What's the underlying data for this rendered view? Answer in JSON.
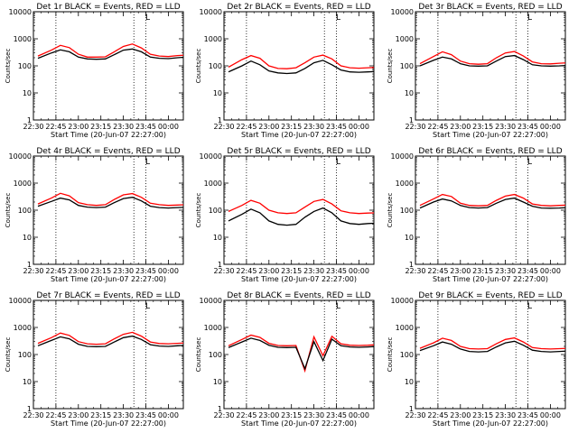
{
  "figure": {
    "y_label": "Counts/sec",
    "x_label": "Start Time (20-Jun-07 22:27:00)",
    "corner_marker": "L"
  },
  "chart_data": [
    {
      "type": "line",
      "title": "Det 1r BLACK = Events, RED = LLD",
      "ylog": true,
      "ylim": [
        1,
        10000
      ],
      "yticks": [
        1,
        10,
        100,
        1000,
        10000
      ],
      "xticks": [
        "22:30",
        "22:45",
        "23:00",
        "23:15",
        "23:30",
        "23:45",
        "00:00"
      ],
      "dotted_x": [
        "22:45",
        "23:37",
        "23:45"
      ],
      "grid": false,
      "x_minutes": [
        3,
        12,
        18,
        24,
        30,
        36,
        42,
        48,
        54,
        60,
        66,
        72,
        78,
        84,
        90,
        96,
        102,
        108,
        114
      ],
      "series": [
        {
          "name": "Events",
          "color": "#000000",
          "values": [
            190,
            300,
            390,
            330,
            210,
            180,
            175,
            180,
            260,
            380,
            420,
            330,
            210,
            190,
            185,
            200,
            210,
            200,
            200
          ]
        },
        {
          "name": "LLD",
          "color": "#ff0000",
          "values": [
            230,
            380,
            570,
            470,
            270,
            210,
            210,
            215,
            330,
            520,
            640,
            460,
            270,
            230,
            220,
            240,
            250,
            245,
            250
          ]
        }
      ]
    },
    {
      "type": "line",
      "title": "Det 2r BLACK = Events, RED = LLD",
      "ylog": true,
      "ylim": [
        1,
        10000
      ],
      "yticks": [
        1,
        10,
        100,
        1000,
        10000
      ],
      "xticks": [
        "22:30",
        "22:45",
        "23:00",
        "23:15",
        "23:30",
        "23:45",
        "00:00"
      ],
      "dotted_x": [
        "22:45",
        "23:37",
        "23:45"
      ],
      "grid": false,
      "x_minutes": [
        3,
        12,
        18,
        24,
        30,
        36,
        42,
        48,
        54,
        60,
        66,
        72,
        78,
        84,
        90,
        96,
        102,
        108,
        114
      ],
      "series": [
        {
          "name": "Events",
          "color": "#000000",
          "values": [
            60,
            100,
            150,
            110,
            65,
            55,
            52,
            55,
            80,
            130,
            160,
            110,
            70,
            60,
            58,
            60,
            62,
            60,
            60
          ]
        },
        {
          "name": "LLD",
          "color": "#ff0000",
          "values": [
            90,
            170,
            240,
            190,
            100,
            80,
            78,
            85,
            130,
            210,
            250,
            180,
            100,
            85,
            82,
            85,
            88,
            85,
            90
          ]
        }
      ]
    },
    {
      "type": "line",
      "title": "Det 3r BLACK = Events, RED = LLD",
      "ylog": true,
      "ylim": [
        1,
        10000
      ],
      "yticks": [
        1,
        10,
        100,
        1000,
        10000
      ],
      "xticks": [
        "22:30",
        "22:45",
        "23:00",
        "23:15",
        "23:30",
        "23:45",
        "00:00"
      ],
      "dotted_x": [
        "22:45",
        "23:37",
        "23:45"
      ],
      "grid": false,
      "x_minutes": [
        3,
        12,
        18,
        24,
        30,
        36,
        42,
        48,
        54,
        60,
        66,
        72,
        78,
        84,
        90,
        96,
        102,
        108,
        114
      ],
      "series": [
        {
          "name": "Events",
          "color": "#000000",
          "values": [
            100,
            160,
            210,
            180,
            120,
            100,
            98,
            100,
            150,
            220,
            240,
            170,
            110,
            100,
            98,
            100,
            105,
            105,
            110
          ]
        },
        {
          "name": "LLD",
          "color": "#ff0000",
          "values": [
            120,
            220,
            330,
            260,
            150,
            120,
            115,
            120,
            200,
            300,
            340,
            230,
            140,
            120,
            118,
            125,
            130,
            130,
            140
          ]
        }
      ]
    },
    {
      "type": "line",
      "title": "Det 4r BLACK = Events, RED = LLD",
      "ylog": true,
      "ylim": [
        1,
        10000
      ],
      "yticks": [
        1,
        10,
        100,
        1000,
        10000
      ],
      "xticks": [
        "22:30",
        "22:45",
        "23:00",
        "23:15",
        "23:30",
        "23:45",
        "00:00"
      ],
      "dotted_x": [
        "22:45",
        "23:37",
        "23:45"
      ],
      "grid": false,
      "x_minutes": [
        3,
        12,
        18,
        24,
        30,
        36,
        42,
        48,
        54,
        60,
        66,
        72,
        78,
        84,
        90,
        96,
        102,
        108,
        114
      ],
      "series": [
        {
          "name": "Events",
          "color": "#000000",
          "values": [
            140,
            210,
            280,
            240,
            150,
            130,
            125,
            130,
            190,
            270,
            300,
            220,
            140,
            125,
            120,
            125,
            128,
            125,
            130
          ]
        },
        {
          "name": "LLD",
          "color": "#ff0000",
          "values": [
            170,
            280,
            420,
            340,
            190,
            160,
            150,
            160,
            250,
            370,
            410,
            300,
            180,
            160,
            150,
            155,
            160,
            155,
            165
          ]
        }
      ]
    },
    {
      "type": "line",
      "title": "Det 5r BLACK = Events, RED = LLD",
      "ylog": true,
      "ylim": [
        1,
        10000
      ],
      "yticks": [
        1,
        10,
        100,
        1000,
        10000
      ],
      "xticks": [
        "22:30",
        "22:45",
        "23:00",
        "23:15",
        "23:30",
        "23:45",
        "00:00"
      ],
      "dotted_x": [
        "22:45",
        "23:37",
        "23:45"
      ],
      "grid": false,
      "x_minutes": [
        3,
        12,
        18,
        24,
        30,
        36,
        42,
        48,
        54,
        60,
        66,
        72,
        78,
        84,
        90,
        96,
        102,
        108,
        114
      ],
      "series": [
        {
          "name": "Events",
          "color": "#000000",
          "values": [
            40,
            70,
            110,
            80,
            40,
            30,
            28,
            30,
            55,
            90,
            120,
            80,
            40,
            32,
            30,
            32,
            33,
            32,
            35
          ]
        },
        {
          "name": "LLD",
          "color": "#ff0000",
          "values": [
            90,
            150,
            230,
            180,
            100,
            80,
            75,
            80,
            130,
            210,
            250,
            170,
            95,
            80,
            75,
            78,
            80,
            80,
            85
          ]
        }
      ]
    },
    {
      "type": "line",
      "title": "Det 6r BLACK = Events, RED = LLD",
      "ylog": true,
      "ylim": [
        1,
        10000
      ],
      "yticks": [
        1,
        10,
        100,
        1000,
        10000
      ],
      "xticks": [
        "22:30",
        "22:45",
        "23:00",
        "23:15",
        "23:30",
        "23:45",
        "00:00"
      ],
      "dotted_x": [
        "22:45",
        "23:37",
        "23:45"
      ],
      "grid": false,
      "x_minutes": [
        3,
        12,
        18,
        24,
        30,
        36,
        42,
        48,
        54,
        60,
        66,
        72,
        78,
        84,
        90,
        96,
        102,
        108,
        114
      ],
      "series": [
        {
          "name": "Events",
          "color": "#000000",
          "values": [
            120,
            200,
            260,
            220,
            150,
            125,
            120,
            125,
            180,
            250,
            280,
            200,
            140,
            120,
            118,
            120,
            125,
            122,
            125
          ]
        },
        {
          "name": "LLD",
          "color": "#ff0000",
          "values": [
            150,
            260,
            380,
            320,
            180,
            150,
            145,
            150,
            230,
            330,
            380,
            280,
            170,
            150,
            145,
            150,
            155,
            150,
            155
          ]
        }
      ]
    },
    {
      "type": "line",
      "title": "Det 7r BLACK = Events, RED = LLD",
      "ylog": true,
      "ylim": [
        1,
        10000
      ],
      "yticks": [
        1,
        10,
        100,
        1000,
        10000
      ],
      "xticks": [
        "22:30",
        "22:45",
        "23:00",
        "23:15",
        "23:30",
        "23:45",
        "00:00"
      ],
      "dotted_x": [
        "22:45",
        "23:37",
        "23:45"
      ],
      "grid": false,
      "x_minutes": [
        3,
        12,
        18,
        24,
        30,
        36,
        42,
        48,
        54,
        60,
        66,
        72,
        78,
        84,
        90,
        96,
        102,
        108,
        114
      ],
      "series": [
        {
          "name": "Events",
          "color": "#000000",
          "values": [
            210,
            330,
            450,
            380,
            240,
            200,
            195,
            200,
            290,
            420,
            480,
            360,
            230,
            205,
            200,
            210,
            220,
            215,
            220
          ]
        },
        {
          "name": "LLD",
          "color": "#ff0000",
          "values": [
            260,
            420,
            620,
            510,
            300,
            250,
            240,
            250,
            380,
            560,
            660,
            480,
            290,
            255,
            250,
            260,
            270,
            265,
            270
          ]
        }
      ]
    },
    {
      "type": "line",
      "title": "Det 8r BLACK = Events, RED = LLD",
      "ylog": true,
      "ylim": [
        1,
        10000
      ],
      "yticks": [
        1,
        10,
        100,
        1000,
        10000
      ],
      "xticks": [
        "22:30",
        "22:45",
        "23:00",
        "23:15",
        "23:30",
        "23:45",
        "00:00"
      ],
      "dotted_x": [
        "22:45",
        "23:37",
        "23:45"
      ],
      "grid": false,
      "x_minutes": [
        3,
        12,
        18,
        24,
        30,
        36,
        42,
        48,
        54,
        60,
        66,
        72,
        78,
        84,
        90,
        96,
        102,
        108,
        114
      ],
      "series": [
        {
          "name": "Events",
          "color": "#000000",
          "values": [
            180,
            290,
            400,
            330,
            220,
            185,
            180,
            185,
            30,
            300,
            60,
            370,
            210,
            190,
            185,
            190,
            200,
            195,
            200
          ]
        },
        {
          "name": "LLD",
          "color": "#ff0000",
          "values": [
            210,
            360,
            520,
            430,
            260,
            215,
            210,
            215,
            25,
            450,
            90,
            470,
            250,
            220,
            215,
            220,
            230,
            225,
            230
          ]
        }
      ]
    },
    {
      "type": "line",
      "title": "Det 9r BLACK = Events, RED = LLD",
      "ylog": true,
      "ylim": [
        1,
        10000
      ],
      "yticks": [
        1,
        10,
        100,
        1000,
        10000
      ],
      "xticks": [
        "22:30",
        "22:45",
        "23:00",
        "23:15",
        "23:30",
        "23:45",
        "00:00"
      ],
      "dotted_x": [
        "22:45",
        "23:37",
        "23:45"
      ],
      "grid": false,
      "x_minutes": [
        3,
        12,
        18,
        24,
        30,
        36,
        42,
        48,
        54,
        60,
        66,
        72,
        78,
        84,
        90,
        96,
        102,
        108,
        114
      ],
      "series": [
        {
          "name": "Events",
          "color": "#000000",
          "values": [
            140,
            210,
            290,
            240,
            160,
            130,
            125,
            130,
            190,
            270,
            310,
            220,
            145,
            130,
            125,
            130,
            135,
            132,
            135
          ]
        },
        {
          "name": "LLD",
          "color": "#ff0000",
          "values": [
            170,
            270,
            400,
            330,
            200,
            165,
            160,
            165,
            250,
            360,
            410,
            290,
            180,
            165,
            160,
            165,
            170,
            168,
            170
          ]
        }
      ]
    }
  ]
}
